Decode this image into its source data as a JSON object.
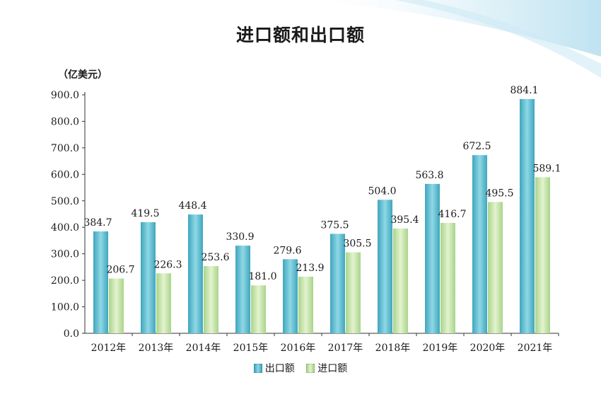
{
  "chart_data": {
    "type": "bar",
    "title": "进口额和出口额",
    "unit_label": "（亿美元）",
    "categories": [
      "2012年",
      "2013年",
      "2014年",
      "2015年",
      "2016年",
      "2017年",
      "2018年",
      "2019年",
      "2020年",
      "2021年"
    ],
    "series": [
      {
        "name": "出口额",
        "color": "#5bbfd0",
        "values": [
          384.7,
          419.5,
          448.4,
          330.9,
          279.6,
          375.5,
          504.0,
          563.8,
          672.5,
          884.1
        ],
        "labels": [
          "384.7",
          "419.5",
          "448.4",
          "330.9",
          "279.6",
          "375.5",
          "504.0",
          "563.8",
          "672.5",
          "884.1"
        ]
      },
      {
        "name": "进口额",
        "color": "#c8e6a6",
        "values": [
          206.7,
          226.3,
          253.6,
          181.0,
          213.9,
          305.5,
          395.4,
          416.7,
          495.5,
          589.1
        ],
        "labels": [
          "206.7",
          "226.3",
          "253.6",
          "181.0",
          "213.9",
          "305.5",
          "395.4",
          "416.7",
          "495.5",
          "589.1"
        ]
      }
    ],
    "ylim": [
      0,
      900
    ],
    "yticks": [
      "0.0",
      "100.0",
      "200.0",
      "300.0",
      "400.0",
      "500.0",
      "600.0",
      "700.0",
      "800.0",
      "900.0"
    ],
    "grid": false,
    "legend_position": "bottom-center",
    "xlabel": "",
    "ylabel": ""
  }
}
